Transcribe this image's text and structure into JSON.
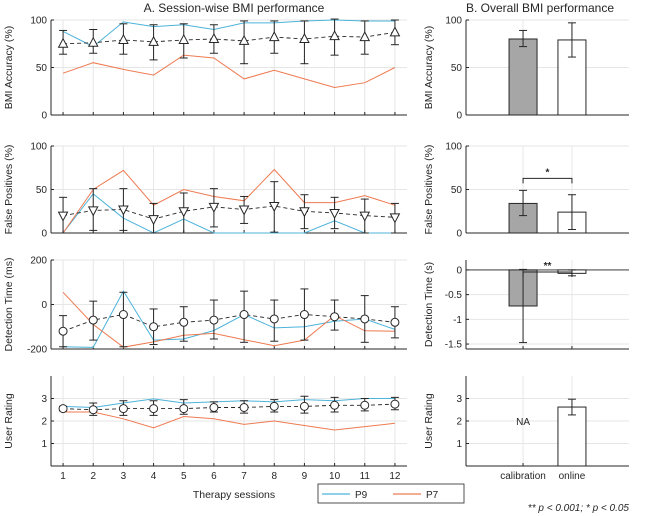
{
  "colors": {
    "p9": "#4db3d9",
    "p7": "#ee7a50",
    "mean": "#262626",
    "bar_calib": "#a6a6a6",
    "bar_online": "#ffffff"
  },
  "chart_data": [
    {
      "id": "sessionwise",
      "type": "line",
      "title": "A. Session-wise BMI performance",
      "xlabel": "Therapy sessions",
      "x": [
        1,
        2,
        3,
        4,
        5,
        6,
        7,
        8,
        9,
        10,
        11,
        12
      ],
      "legend": [
        "P9",
        "P7"
      ],
      "panels": [
        {
          "ylabel": "BMI Accuracy (%)",
          "ylim": [
            0,
            100
          ],
          "yticks": [
            0,
            50,
            100
          ],
          "marker": "triangle-up",
          "p9": [
            88,
            72,
            98,
            93,
            95,
            90,
            97,
            97,
            99,
            100,
            99,
            99
          ],
          "p7": [
            44,
            55,
            48,
            42,
            63,
            60,
            38,
            47,
            38,
            29,
            34,
            50
          ],
          "mean": [
            75,
            76,
            79,
            77,
            79,
            80,
            78,
            82,
            80,
            83,
            82,
            87
          ],
          "err_low": [
            64,
            65,
            64,
            58,
            60,
            65,
            54,
            65,
            54,
            63,
            64,
            74
          ],
          "err_high": [
            89,
            90,
            96,
            95,
            96,
            95,
            99,
            99,
            99,
            101,
            99,
            100
          ]
        },
        {
          "ylabel": "False Positives (%)",
          "ylim": [
            0,
            100
          ],
          "yticks": [
            0,
            50,
            100
          ],
          "marker": "triangle-down",
          "p9": [
            0,
            45,
            17,
            0,
            16,
            0,
            0,
            0,
            0,
            14,
            0,
            0
          ],
          "p7": [
            0,
            50,
            72,
            32,
            50,
            42,
            37,
            73,
            35,
            35,
            43,
            32
          ],
          "mean": [
            20,
            26,
            27,
            16,
            25,
            30,
            27,
            31,
            25,
            23,
            20,
            18
          ],
          "err_low": [
            0,
            3,
            3,
            0,
            0,
            7,
            11,
            1,
            5,
            5,
            0,
            0
          ],
          "err_high": [
            41,
            51,
            51,
            34,
            46,
            51,
            42,
            59,
            44,
            41,
            39,
            34
          ]
        },
        {
          "ylabel": "Detection Time (ms)",
          "ylim": [
            -200,
            200
          ],
          "yticks": [
            -200,
            0,
            200
          ],
          "marker": "circle",
          "p9": [
            -190,
            -193,
            60,
            -160,
            -155,
            -117,
            -45,
            -105,
            -100,
            -75,
            -65,
            -112
          ],
          "p7": [
            55,
            -90,
            -192,
            -168,
            -138,
            -130,
            -158,
            -185,
            -160,
            -50,
            -118,
            -120
          ],
          "mean": [
            -120,
            -70,
            -45,
            -100,
            -80,
            -70,
            -45,
            -65,
            -45,
            -55,
            -65,
            -80
          ],
          "err_low": [
            -190,
            -160,
            -190,
            -180,
            -165,
            -155,
            -170,
            -165,
            -160,
            -115,
            -170,
            -150
          ],
          "err_high": [
            -50,
            15,
            55,
            -20,
            -10,
            20,
            60,
            20,
            70,
            20,
            40,
            -10
          ]
        },
        {
          "ylabel": "User Rating",
          "ylim": [
            0,
            4
          ],
          "yticks": [
            1,
            2,
            3
          ],
          "marker": "circle",
          "p9": [
            2.65,
            2.6,
            2.8,
            2.98,
            2.8,
            2.85,
            2.9,
            2.85,
            2.95,
            2.9,
            3.0,
            3.0
          ],
          "p7": [
            2.4,
            2.4,
            2.1,
            1.7,
            2.2,
            2.1,
            1.85,
            2.0,
            1.8,
            1.6,
            1.75,
            1.9
          ],
          "mean": [
            2.55,
            2.5,
            2.55,
            2.55,
            2.55,
            2.6,
            2.6,
            2.65,
            2.65,
            2.7,
            2.7,
            2.75
          ],
          "err_low": [
            2.45,
            2.25,
            2.25,
            2.25,
            2.3,
            2.4,
            2.35,
            2.4,
            2.35,
            2.4,
            2.45,
            2.5
          ],
          "err_high": [
            2.65,
            2.8,
            2.9,
            2.9,
            2.95,
            2.85,
            2.9,
            2.95,
            3.1,
            3.05,
            3.0,
            3.05
          ]
        }
      ]
    },
    {
      "id": "overall",
      "type": "bar",
      "title": "B. Overall BMI performance",
      "categories": [
        "calibration",
        "online"
      ],
      "panels": [
        {
          "ylabel": "BMI Accuracy (%)",
          "ylim": [
            0,
            100
          ],
          "yticks": [
            0,
            50,
            100
          ],
          "values": [
            80,
            79
          ],
          "err_low": [
            72,
            61
          ],
          "err_high": [
            89,
            97
          ],
          "sig": ""
        },
        {
          "ylabel": "False Positives (%)",
          "ylim": [
            0,
            100
          ],
          "yticks": [
            0,
            50,
            100
          ],
          "values": [
            34,
            24
          ],
          "err_low": [
            20,
            4
          ],
          "err_high": [
            49,
            44
          ],
          "sig": "*"
        },
        {
          "ylabel": "Detection Time (s)",
          "ylim": [
            -1.6,
            0.2
          ],
          "yticks": [
            0,
            -0.5,
            -1,
            -1.5
          ],
          "values": [
            -0.73,
            -0.07
          ],
          "err_low": [
            -1.47,
            -0.12
          ],
          "err_high": [
            0.01,
            0.0
          ],
          "sig": "**"
        },
        {
          "ylabel": "User Rating",
          "ylim": [
            0,
            4
          ],
          "yticks": [
            1,
            2,
            3
          ],
          "values": [
            null,
            2.62
          ],
          "err_low": [
            null,
            2.27
          ],
          "err_high": [
            null,
            2.97
          ],
          "sig": "",
          "na_text": "NA"
        }
      ]
    }
  ],
  "footnote": "** p < 0.001; * p < 0.05"
}
